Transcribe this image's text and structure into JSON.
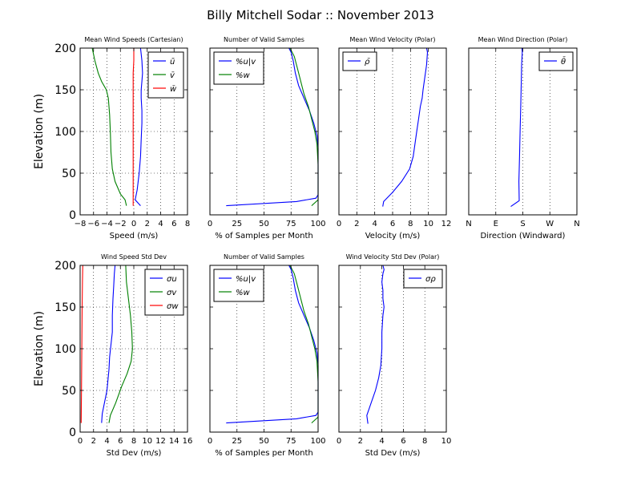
{
  "figure": {
    "title": "Billy Mitchell Sodar :: November 2013",
    "colors": {
      "blue": "#0000ff",
      "green": "#008000",
      "red": "#ff0000",
      "axis": "#000000"
    }
  },
  "chart_data": [
    {
      "type": "line",
      "title": "Mean Wind Speeds (Cartesian)",
      "xlabel": "Speed (m/s)",
      "ylabel": "Elevation (m)",
      "xlim": [
        -8,
        8
      ],
      "ylim": [
        0,
        200
      ],
      "xticks": [
        -8,
        -6,
        -4,
        -2,
        0,
        2,
        4,
        6,
        8
      ],
      "xtick_labels": [
        "−8",
        "−6",
        "−4",
        "−2",
        "0",
        "2",
        "4",
        "6",
        "8"
      ],
      "yticks": [
        0,
        50,
        100,
        150,
        200
      ],
      "ytick_labels": [
        "0",
        "50",
        "100",
        "150",
        "200"
      ],
      "grid": true,
      "legend_loc": "top-right",
      "series": [
        {
          "name": "ū",
          "color": "#0000ff",
          "x": [
            1.0,
            0.2,
            0.5,
            0.8,
            1.0,
            1.1,
            1.2,
            1.2,
            1.1,
            1.1,
            1.2,
            1.3,
            1.2,
            1.0
          ],
          "y": [
            11,
            18,
            30,
            50,
            70,
            90,
            110,
            125,
            140,
            150,
            160,
            170,
            185,
            200
          ]
        },
        {
          "name": "v̄",
          "color": "#008000",
          "x": [
            -1.1,
            -1.3,
            -2.0,
            -2.8,
            -3.2,
            -3.4,
            -3.5,
            -3.6,
            -3.8,
            -4.1,
            -4.8,
            -5.3,
            -5.8,
            -6.2
          ],
          "y": [
            11,
            18,
            25,
            40,
            55,
            75,
            100,
            120,
            140,
            150,
            160,
            170,
            185,
            200
          ]
        },
        {
          "name": "w̄",
          "color": "#ff0000",
          "x": [
            -0.1,
            -0.1,
            -0.1,
            -0.1,
            -0.1,
            -0.1,
            0.0,
            0.0
          ],
          "y": [
            11,
            20,
            50,
            100,
            150,
            170,
            185,
            200
          ]
        }
      ]
    },
    {
      "type": "line",
      "title": "Number of Valid Samples",
      "xlabel": "% of Samples per Month",
      "xlim": [
        0,
        100
      ],
      "ylim": [
        0,
        200
      ],
      "xticks": [
        0,
        25,
        50,
        75,
        100
      ],
      "xtick_labels": [
        "0",
        "25",
        "50",
        "75",
        "100"
      ],
      "grid": true,
      "legend_loc": "top-left",
      "series": [
        {
          "name": "%u|v",
          "color": "#0000ff",
          "x": [
            15,
            80,
            98,
            100,
            100,
            100,
            99,
            96,
            92,
            87,
            82,
            79,
            77,
            75,
            73
          ],
          "y": [
            11,
            16,
            20,
            24,
            50,
            80,
            95,
            110,
            125,
            140,
            155,
            170,
            185,
            195,
            200
          ]
        },
        {
          "name": "%w",
          "color": "#008000",
          "x": [
            94,
            100,
            100,
            100,
            99,
            97,
            94,
            91,
            87,
            84,
            81,
            78,
            74
          ],
          "y": [
            11,
            18,
            30,
            60,
            85,
            100,
            115,
            130,
            145,
            160,
            175,
            190,
            200
          ]
        }
      ]
    },
    {
      "type": "line",
      "title": "Mean Wind Velocity (Polar)",
      "xlabel": "Velocity (m/s)",
      "xlim": [
        0,
        12
      ],
      "ylim": [
        0,
        200
      ],
      "xticks": [
        0,
        2,
        4,
        6,
        8,
        10,
        12
      ],
      "xtick_labels": [
        "0",
        "2",
        "4",
        "6",
        "8",
        "10",
        "12"
      ],
      "grid": true,
      "legend_loc": "top-left",
      "series": [
        {
          "name": "ρ̄",
          "color": "#0000ff",
          "x": [
            4.9,
            5.0,
            6.0,
            7.0,
            7.9,
            8.3,
            8.5,
            8.7,
            8.9,
            9.1,
            9.3,
            9.4,
            9.6,
            9.8,
            9.9,
            9.8
          ],
          "y": [
            10,
            16,
            27,
            40,
            55,
            70,
            85,
            100,
            115,
            130,
            140,
            150,
            165,
            180,
            195,
            200
          ]
        }
      ]
    },
    {
      "type": "line",
      "title": "Mean Wind Direction (Polar)",
      "xlabel": "Direction (Windward)",
      "xlim": [
        0,
        360
      ],
      "ylim": [
        0,
        200
      ],
      "xticks": [
        0,
        90,
        180,
        270,
        360
      ],
      "xtick_labels": [
        "N",
        "E",
        "S",
        "W",
        "N"
      ],
      "grid": true,
      "legend_loc": "top-right",
      "series": [
        {
          "name": "θ̄",
          "color": "#0000ff",
          "x": [
            140,
            168,
            167,
            169,
            171,
            173,
            175,
            176,
            178,
            177
          ],
          "y": [
            10,
            17,
            40,
            70,
            100,
            130,
            160,
            180,
            195,
            200
          ]
        }
      ]
    },
    {
      "type": "line",
      "title": "Wind Speed Std Dev",
      "xlabel": "Std Dev (m/s)",
      "ylabel": "Elevation (m)",
      "xlim": [
        0,
        16
      ],
      "ylim": [
        0,
        200
      ],
      "xticks": [
        0,
        2,
        4,
        6,
        8,
        10,
        12,
        14,
        16
      ],
      "xtick_labels": [
        "0",
        "2",
        "4",
        "6",
        "8",
        "10",
        "12",
        "14",
        "16"
      ],
      "yticks": [
        0,
        50,
        100,
        150,
        200
      ],
      "ytick_labels": [
        "0",
        "50",
        "100",
        "150",
        "200"
      ],
      "grid": true,
      "legend_loc": "top-right",
      "series": [
        {
          "name": "σu",
          "color": "#0000ff",
          "x": [
            3.2,
            3.3,
            4.0,
            4.3,
            4.4,
            4.6,
            4.8,
            4.8,
            4.9,
            5.0,
            5.1,
            5.2
          ],
          "y": [
            11,
            22,
            50,
            75,
            90,
            105,
            120,
            140,
            160,
            175,
            190,
            200
          ]
        },
        {
          "name": "σv",
          "color": "#008000",
          "x": [
            4.3,
            4.5,
            5.3,
            6.2,
            7.0,
            7.6,
            7.8,
            7.7,
            7.5,
            7.2,
            6.9,
            6.8
          ],
          "y": [
            11,
            20,
            35,
            55,
            70,
            85,
            100,
            120,
            140,
            160,
            180,
            200
          ]
        },
        {
          "name": "σw",
          "color": "#ff0000",
          "x": [
            0.15,
            0.2,
            0.25,
            0.3,
            0.35,
            0.4
          ],
          "y": [
            11,
            50,
            100,
            150,
            180,
            200
          ]
        }
      ]
    },
    {
      "type": "line",
      "title": "Number of Valid Samples",
      "xlabel": "% of Samples per Month",
      "xlim": [
        0,
        100
      ],
      "ylim": [
        0,
        200
      ],
      "xticks": [
        0,
        25,
        50,
        75,
        100
      ],
      "xtick_labels": [
        "0",
        "25",
        "50",
        "75",
        "100"
      ],
      "grid": true,
      "legend_loc": "top-left",
      "series": [
        {
          "name": "%u|v",
          "color": "#0000ff",
          "x": [
            15,
            80,
            98,
            100,
            100,
            100,
            99,
            96,
            92,
            87,
            82,
            79,
            77,
            75,
            73
          ],
          "y": [
            11,
            16,
            20,
            24,
            50,
            80,
            95,
            110,
            125,
            140,
            155,
            170,
            185,
            195,
            200
          ]
        },
        {
          "name": "%w",
          "color": "#008000",
          "x": [
            94,
            100,
            100,
            100,
            99,
            97,
            94,
            91,
            87,
            84,
            81,
            78,
            74
          ],
          "y": [
            11,
            18,
            30,
            60,
            85,
            100,
            115,
            130,
            145,
            160,
            175,
            190,
            200
          ]
        }
      ]
    },
    {
      "type": "line",
      "title": "Wind Velocity Std Dev (Polar)",
      "xlabel": "Std Dev (m/s)",
      "xlim": [
        0,
        10
      ],
      "ylim": [
        0,
        200
      ],
      "xticks": [
        0,
        2,
        4,
        6,
        8,
        10
      ],
      "xtick_labels": [
        "0",
        "2",
        "4",
        "6",
        "8",
        "10"
      ],
      "grid": true,
      "legend_loc": "top-right",
      "series": [
        {
          "name": "σρ",
          "color": "#0000ff",
          "x": [
            2.7,
            2.6,
            3.0,
            3.4,
            3.7,
            3.9,
            4.0,
            4.0,
            4.1,
            4.2,
            4.1,
            4.1,
            4.0,
            4.1,
            4.2,
            4.1
          ],
          "y": [
            10,
            20,
            35,
            50,
            65,
            80,
            100,
            120,
            140,
            150,
            160,
            170,
            180,
            190,
            195,
            200
          ]
        }
      ]
    }
  ]
}
